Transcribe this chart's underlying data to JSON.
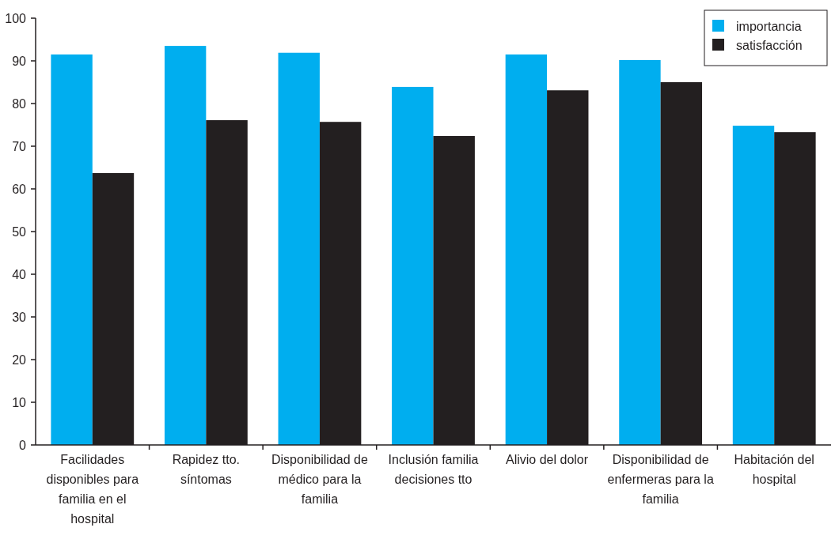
{
  "chart_data": {
    "type": "bar",
    "categories": [
      "Facilidades disponibles para familia en el hospital",
      "Rapidez tto. síntomas",
      "Disponibilidad de médico para la familia",
      "Inclusión familia decisiones tto",
      "Alivio del dolor",
      "Disponibilidad de enfermeras para la familia",
      "Habitación del hospital"
    ],
    "series": [
      {
        "name": "importancia",
        "color": "#00aeef",
        "values": [
          91.5,
          93.5,
          91.9,
          83.9,
          91.5,
          90.2,
          74.8
        ]
      },
      {
        "name": "satisfacción",
        "color": "#231f20",
        "values": [
          63.7,
          76.1,
          75.7,
          72.4,
          83.1,
          85.0,
          73.3
        ]
      }
    ],
    "ylim": [
      0,
      100
    ],
    "yticks": [
      0,
      10,
      20,
      30,
      40,
      50,
      60,
      70,
      80,
      90,
      100
    ],
    "grid": false,
    "legend": "top right"
  }
}
